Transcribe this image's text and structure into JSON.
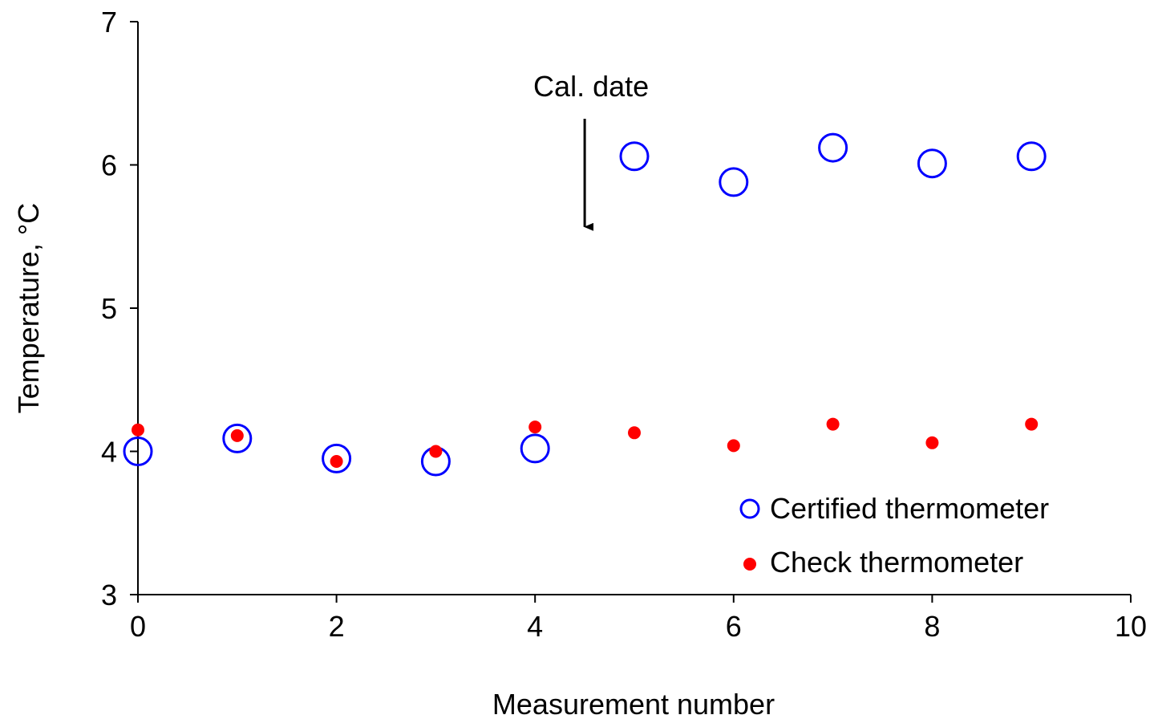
{
  "chart_data": {
    "type": "scatter",
    "title": "",
    "xlabel": "Measurement number",
    "ylabel": "Temperature, °C",
    "xlim": [
      0,
      10
    ],
    "ylim": [
      3,
      7
    ],
    "xticks": [
      0,
      2,
      4,
      6,
      8,
      10
    ],
    "yticks": [
      3,
      4,
      5,
      6,
      7
    ],
    "grid": false,
    "legend_position": "bottom-right",
    "series": [
      {
        "name": "Certified thermometer",
        "marker": "open-circle",
        "color": "#0000ff",
        "x": [
          0,
          1,
          2,
          3,
          4,
          5,
          6,
          7,
          8,
          9
        ],
        "y": [
          4.0,
          4.09,
          3.95,
          3.93,
          4.02,
          6.06,
          5.88,
          6.12,
          6.01,
          6.06
        ]
      },
      {
        "name": "Check thermometer",
        "marker": "filled-circle",
        "color": "#ff0000",
        "x": [
          0,
          1,
          2,
          3,
          4,
          5,
          6,
          7,
          8,
          9
        ],
        "y": [
          4.15,
          4.11,
          3.93,
          4.0,
          4.17,
          4.13,
          4.04,
          4.19,
          4.06,
          4.19
        ]
      }
    ],
    "annotations": [
      {
        "text": "Cal. date",
        "x": 4.5,
        "y_from": 6.3,
        "y_to": 5.5,
        "type": "arrow"
      }
    ]
  }
}
